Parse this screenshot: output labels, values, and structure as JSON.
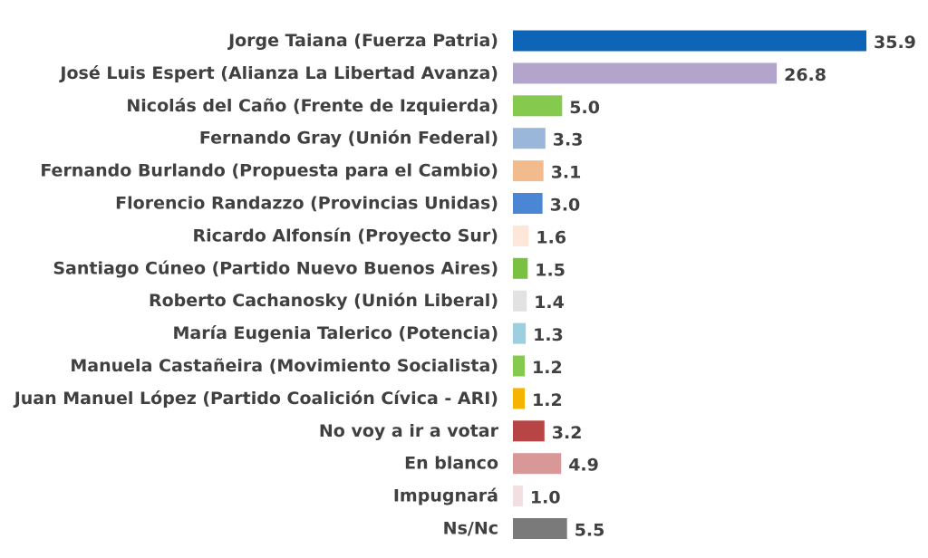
{
  "chart_data": {
    "type": "bar",
    "orientation": "horizontal",
    "title": "",
    "xlabel": "",
    "ylabel": "",
    "grid": false,
    "legend": "none",
    "xlim": [
      0,
      35.9
    ],
    "categories": [
      "Jorge Taiana (Fuerza Patria)",
      "José Luis Espert (Alianza La Libertad Avanza)",
      "Nicolás del Caño (Frente de Izquierda)",
      "Fernando Gray (Unión Federal)",
      "Fernando Burlando (Propuesta para el Cambio)",
      "Florencio Randazzo (Provincias Unidas)",
      "Ricardo Alfonsín (Proyecto Sur)",
      "Santiago Cúneo (Partido Nuevo Buenos Aires)",
      "Roberto Cachanosky (Unión Liberal)",
      "María Eugenia Talerico (Potencia)",
      "Manuela Castañeira (Movimiento Socialista)",
      "Juan Manuel López (Partido Coalición Cívica - ARI)",
      "No voy a ir a votar",
      "En blanco",
      "Impugnará",
      "Ns/Nc"
    ],
    "values": [
      35.9,
      26.8,
      5.0,
      3.3,
      3.1,
      3.0,
      1.6,
      1.5,
      1.4,
      1.3,
      1.2,
      1.2,
      3.2,
      4.9,
      1.0,
      5.5
    ],
    "value_labels": [
      "35.9",
      "26.8",
      "5.0",
      "3.3",
      "3.1",
      "3.0",
      "1.6",
      "1.5",
      "1.4",
      "1.3",
      "1.2",
      "1.2",
      "3.2",
      "4.9",
      "1.0",
      "5.5"
    ],
    "colors": [
      "#0e65b8",
      "#b3a4cc",
      "#86c94f",
      "#9ab7d9",
      "#f2bb8e",
      "#4a86d4",
      "#fde6da",
      "#7ac142",
      "#e2e2e2",
      "#9ccfe0",
      "#86c94f",
      "#f4b400",
      "#b84545",
      "#d99898",
      "#f2dfe2",
      "#7a7a7a"
    ]
  }
}
